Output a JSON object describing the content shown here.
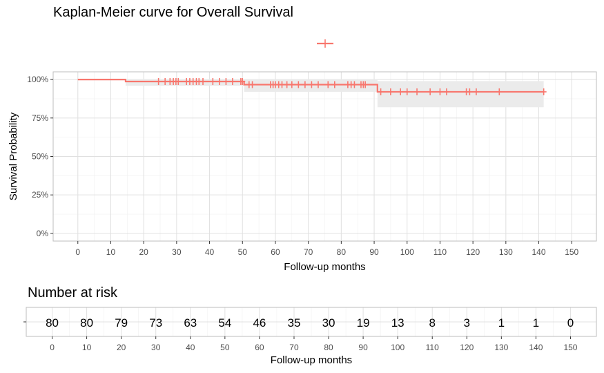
{
  "chart_data": [
    {
      "type": "line",
      "title": "Kaplan-Meier curve for Overall Survival",
      "xlabel": "Follow-up months",
      "ylabel": "Survival Probability",
      "xlim": [
        0,
        150
      ],
      "ylim": [
        0,
        1
      ],
      "x_ticks": [
        0,
        10,
        20,
        30,
        40,
        50,
        60,
        70,
        80,
        90,
        100,
        110,
        120,
        130,
        140,
        150
      ],
      "y_ticks": [
        0,
        0.25,
        0.5,
        0.75,
        1.0
      ],
      "y_tick_labels": [
        "0%",
        "25%",
        "50%",
        "75%",
        "100%"
      ],
      "grid": true,
      "legend_position": "top",
      "series": [
        {
          "color": "#F8766D",
          "steps": [
            {
              "x": 0,
              "y": 1.0
            },
            {
              "x": 14.5,
              "y": 0.987
            },
            {
              "x": 50.5,
              "y": 0.967
            },
            {
              "x": 91,
              "y": 0.92
            },
            {
              "x": 141.5,
              "y": 0.92
            }
          ],
          "confidence_band": [
            {
              "x0": 14.5,
              "x1": 50.5,
              "lower": 0.96,
              "upper": 1.0
            },
            {
              "x0": 50.5,
              "x1": 91,
              "lower": 0.92,
              "upper": 1.0
            },
            {
              "x0": 91,
              "x1": 141.5,
              "lower": 0.82,
              "upper": 0.99
            }
          ],
          "censored": [
            24.5,
            26.5,
            28,
            29,
            29.8,
            30.5,
            33,
            34,
            35,
            36,
            36.8,
            38,
            41,
            43,
            45,
            47,
            49.5,
            50,
            52,
            53,
            58.5,
            59.3,
            60,
            61,
            62,
            63.5,
            65,
            67,
            69,
            71,
            73,
            76,
            78,
            82,
            83,
            84,
            86,
            86.7,
            87.3,
            92,
            95,
            98,
            100,
            103,
            107,
            110,
            112,
            118,
            119,
            121,
            128,
            141.5
          ]
        }
      ]
    },
    {
      "type": "table",
      "title": "Number at risk",
      "xlabel": "Follow-up months",
      "x": [
        0,
        10,
        20,
        30,
        40,
        50,
        60,
        70,
        80,
        90,
        100,
        110,
        120,
        130,
        140,
        150
      ],
      "values": [
        80,
        80,
        79,
        73,
        63,
        54,
        46,
        35,
        30,
        19,
        13,
        8,
        3,
        1,
        1,
        0
      ]
    }
  ]
}
